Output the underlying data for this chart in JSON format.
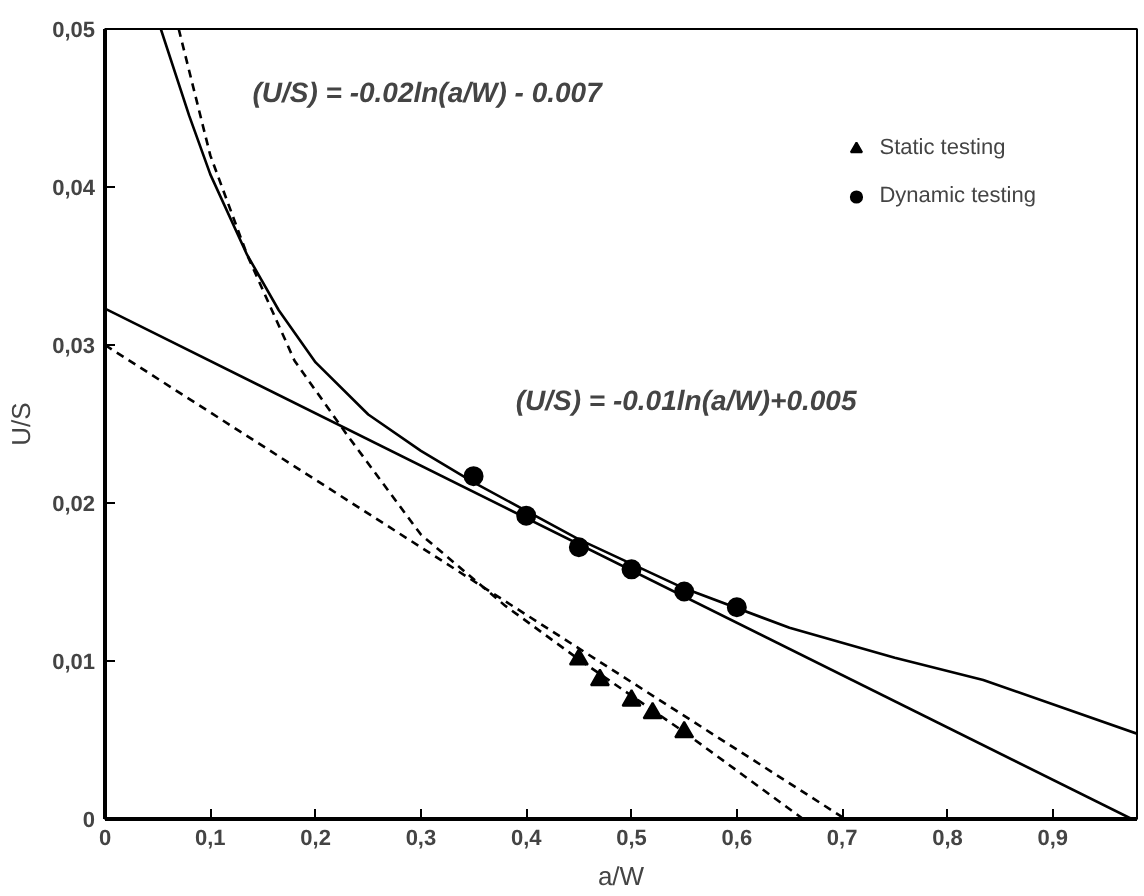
{
  "chart_data": {
    "type": "line",
    "xlabel": "a/W",
    "ylabel": "U/S",
    "xlim": [
      0,
      0.98
    ],
    "ylim": [
      0,
      0.05
    ],
    "xticks": [
      0,
      {
        "value": 0.1,
        "label": "0,1"
      },
      {
        "value": 0.2,
        "label": "0,2"
      },
      {
        "value": 0.3,
        "label": "0,3"
      },
      {
        "value": 0.4,
        "label": "0,4"
      },
      {
        "value": 0.5,
        "label": "0,5"
      },
      {
        "value": 0.6,
        "label": "0,6"
      },
      {
        "value": 0.7,
        "label": "0,7"
      },
      {
        "value": 0.8,
        "label": "0,8"
      },
      {
        "value": 0.9,
        "label": "0,9"
      }
    ],
    "yticks": [
      0,
      {
        "value": 0.01,
        "label": "0,01"
      },
      {
        "value": 0.02,
        "label": "0,02"
      },
      {
        "value": 0.03,
        "label": "0,03"
      },
      {
        "value": 0.04,
        "label": "0,04"
      },
      {
        "value": 0.05,
        "label": "0,05"
      }
    ],
    "grid": false,
    "legend": "top right",
    "annotations": [
      "(U/S) = -0.02ln(a/W) - 0.007",
      "(U/S) = -0.01ln(a/W)+0.005"
    ],
    "series": [
      {
        "color": "#000000",
        "line_style": "solid",
        "x": [
          0.053,
          0.08,
          0.1,
          0.135,
          0.165,
          0.2,
          0.25,
          0.3,
          0.35,
          0.45,
          0.55,
          0.65,
          0.75,
          0.834,
          0.98
        ],
        "values": [
          0.05,
          0.0445,
          0.0408,
          0.0357,
          0.0322,
          0.0289,
          0.0256,
          0.0233,
          0.0213,
          0.0177,
          0.0146,
          0.0121,
          0.0102,
          0.0088,
          0.0054
        ]
      },
      {
        "color": "#000000",
        "line_style": "dashed",
        "x": [
          0.07,
          0.1,
          0.135,
          0.18,
          0.23,
          0.3,
          0.38,
          0.45,
          0.55,
          0.663
        ],
        "values": [
          0.05,
          0.042,
          0.0357,
          0.029,
          0.0243,
          0.018,
          0.0135,
          0.0101,
          0.0055,
          0
        ]
      },
      {
        "color": "#000000",
        "line_style": "solid",
        "x": [
          0,
          0.975
        ],
        "values": [
          0.0323,
          0
        ]
      },
      {
        "color": "#000000",
        "line_style": "dashed",
        "x": [
          0,
          0.703
        ],
        "values": [
          0.03,
          0
        ]
      },
      {
        "name": "Static testing",
        "type": "scatter",
        "marker": "triangle",
        "color": "#000000",
        "x": [
          0.45,
          0.47,
          0.5,
          0.52,
          0.55
        ],
        "values": [
          0.0101,
          0.0088,
          0.0075,
          0.0067,
          0.0055
        ]
      },
      {
        "name": "Dynamic testing",
        "type": "scatter",
        "marker": "circle",
        "color": "#000000",
        "x": [
          0.35,
          0.4,
          0.45,
          0.5,
          0.55,
          0.6
        ],
        "values": [
          0.0217,
          0.0192,
          0.0172,
          0.0158,
          0.0144,
          0.0134
        ]
      }
    ]
  }
}
